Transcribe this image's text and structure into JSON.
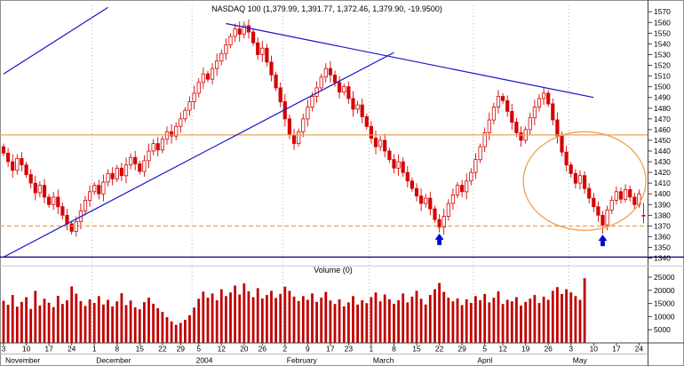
{
  "title": "NASDAQ 100 (1,379.99, 1,391.77, 1,372.46, 1,379.90, -19.9500)",
  "volume_pane": {
    "title": "Volume (0)"
  },
  "colors": {
    "candle": "#d40404",
    "candle_up_fill": "#ffffff",
    "volume": "#c00000",
    "trendline": "#1515c8",
    "orange": "#efa050",
    "navy": "#000080",
    "grid": "#9a9a9a",
    "arrow": "#0008d0",
    "axis": "#404040"
  },
  "chart_data": {
    "type": "candlestick",
    "title": "NASDAQ 100",
    "last_quote": {
      "open": 1379.99,
      "high": 1391.77,
      "low": 1372.46,
      "close": 1379.9,
      "change": -19.95
    },
    "ylim": [
      1338,
      1576
    ],
    "volume_ylim": [
      0,
      27000
    ],
    "y_ticks": [
      1570,
      1560,
      1550,
      1540,
      1530,
      1520,
      1510,
      1500,
      1490,
      1480,
      1470,
      1460,
      1450,
      1440,
      1430,
      1420,
      1410,
      1400,
      1390,
      1380,
      1370,
      1360,
      1350,
      1340
    ],
    "volume_ticks": [
      25000,
      20000,
      15000,
      10000,
      5000
    ],
    "day_ticks": [
      {
        "index": 0,
        "label": "3"
      },
      {
        "index": 5,
        "label": "10"
      },
      {
        "index": 10,
        "label": "17"
      },
      {
        "index": 15,
        "label": "24"
      },
      {
        "index": 20,
        "label": "1"
      },
      {
        "index": 25,
        "label": "8"
      },
      {
        "index": 30,
        "label": "15"
      },
      {
        "index": 35,
        "label": "22"
      },
      {
        "index": 39,
        "label": "29"
      },
      {
        "index": 43,
        "label": "5"
      },
      {
        "index": 48,
        "label": "12"
      },
      {
        "index": 53,
        "label": "20"
      },
      {
        "index": 57,
        "label": "26"
      },
      {
        "index": 62,
        "label": "2"
      },
      {
        "index": 67,
        "label": "9"
      },
      {
        "index": 72,
        "label": "17"
      },
      {
        "index": 76,
        "label": "23"
      },
      {
        "index": 81,
        "label": "1"
      },
      {
        "index": 86,
        "label": "8"
      },
      {
        "index": 91,
        "label": "15"
      },
      {
        "index": 96,
        "label": "22"
      },
      {
        "index": 101,
        "label": "29"
      },
      {
        "index": 106,
        "label": "5"
      },
      {
        "index": 110,
        "label": "12"
      },
      {
        "index": 115,
        "label": "19"
      },
      {
        "index": 120,
        "label": "26"
      },
      {
        "index": 125,
        "label": "3"
      },
      {
        "index": 130,
        "label": "10"
      },
      {
        "index": 135,
        "label": "17"
      },
      {
        "index": 140,
        "label": "24"
      }
    ],
    "months": [
      {
        "index": 0,
        "label": "November"
      },
      {
        "index": 20,
        "label": "December"
      },
      {
        "index": 42,
        "label": "2004"
      },
      {
        "index": 62,
        "label": "February"
      },
      {
        "index": 81,
        "label": "March"
      },
      {
        "index": 104,
        "label": "April"
      },
      {
        "index": 125,
        "label": "May"
      }
    ],
    "ohlc": [
      [
        1444,
        1447,
        1435,
        1438
      ],
      [
        1438,
        1443,
        1425,
        1430
      ],
      [
        1430,
        1437,
        1415,
        1422
      ],
      [
        1422,
        1437,
        1418,
        1433
      ],
      [
        1433,
        1439,
        1421,
        1427
      ],
      [
        1427,
        1430,
        1415,
        1418
      ],
      [
        1418,
        1423,
        1405,
        1410
      ],
      [
        1410,
        1417,
        1394,
        1401
      ],
      [
        1401,
        1412,
        1397,
        1408
      ],
      [
        1408,
        1414,
        1391,
        1397
      ],
      [
        1397,
        1400,
        1387,
        1390
      ],
      [
        1390,
        1402,
        1385,
        1397
      ],
      [
        1397,
        1404,
        1381,
        1388
      ],
      [
        1388,
        1392,
        1376,
        1380
      ],
      [
        1380,
        1386,
        1366,
        1372
      ],
      [
        1372,
        1375,
        1362,
        1365
      ],
      [
        1365,
        1379,
        1360,
        1374
      ],
      [
        1374,
        1391,
        1367,
        1384
      ],
      [
        1384,
        1398,
        1380,
        1394
      ],
      [
        1394,
        1408,
        1388,
        1402
      ],
      [
        1402,
        1411,
        1399,
        1408
      ],
      [
        1408,
        1413,
        1395,
        1400
      ],
      [
        1400,
        1418,
        1393,
        1411
      ],
      [
        1411,
        1423,
        1407,
        1419
      ],
      [
        1419,
        1425,
        1408,
        1414
      ],
      [
        1414,
        1427,
        1411,
        1424
      ],
      [
        1424,
        1429,
        1412,
        1417
      ],
      [
        1417,
        1434,
        1410,
        1427
      ],
      [
        1427,
        1438,
        1423,
        1434
      ],
      [
        1434,
        1440,
        1422,
        1428
      ],
      [
        1428,
        1431,
        1418,
        1421
      ],
      [
        1421,
        1436,
        1416,
        1431
      ],
      [
        1431,
        1447,
        1424,
        1440
      ],
      [
        1440,
        1451,
        1436,
        1447
      ],
      [
        1447,
        1453,
        1435,
        1441
      ],
      [
        1441,
        1454,
        1438,
        1451
      ],
      [
        1451,
        1463,
        1446,
        1458
      ],
      [
        1458,
        1465,
        1447,
        1454
      ],
      [
        1454,
        1467,
        1450,
        1463
      ],
      [
        1463,
        1476,
        1457,
        1470
      ],
      [
        1470,
        1481,
        1467,
        1478
      ],
      [
        1478,
        1491,
        1473,
        1486
      ],
      [
        1486,
        1501,
        1479,
        1494
      ],
      [
        1494,
        1508,
        1490,
        1504
      ],
      [
        1504,
        1518,
        1498,
        1512
      ],
      [
        1512,
        1515,
        1504,
        1507
      ],
      [
        1507,
        1522,
        1502,
        1517
      ],
      [
        1517,
        1531,
        1510,
        1524
      ],
      [
        1524,
        1535,
        1520,
        1531
      ],
      [
        1531,
        1545,
        1525,
        1539
      ],
      [
        1539,
        1550,
        1536,
        1547
      ],
      [
        1547,
        1559,
        1542,
        1554
      ],
      [
        1554,
        1561,
        1542,
        1549
      ],
      [
        1549,
        1561,
        1545,
        1557
      ],
      [
        1557,
        1563,
        1545,
        1551
      ],
      [
        1551,
        1554,
        1538,
        1541
      ],
      [
        1541,
        1546,
        1525,
        1530
      ],
      [
        1530,
        1543,
        1523,
        1536
      ],
      [
        1536,
        1540,
        1519,
        1523
      ],
      [
        1523,
        1529,
        1505,
        1511
      ],
      [
        1511,
        1514,
        1496,
        1499
      ],
      [
        1499,
        1504,
        1481,
        1486
      ],
      [
        1486,
        1493,
        1463,
        1470
      ],
      [
        1470,
        1474,
        1451,
        1455
      ],
      [
        1455,
        1461,
        1441,
        1447
      ],
      [
        1447,
        1461,
        1444,
        1458
      ],
      [
        1458,
        1475,
        1453,
        1470
      ],
      [
        1470,
        1488,
        1463,
        1481
      ],
      [
        1481,
        1495,
        1477,
        1491
      ],
      [
        1491,
        1505,
        1485,
        1499
      ],
      [
        1499,
        1512,
        1496,
        1509
      ],
      [
        1509,
        1522,
        1504,
        1517
      ],
      [
        1517,
        1524,
        1504,
        1511
      ],
      [
        1511,
        1515,
        1500,
        1504
      ],
      [
        1504,
        1510,
        1489,
        1495
      ],
      [
        1495,
        1503,
        1492,
        1500
      ],
      [
        1500,
        1505,
        1484,
        1489
      ],
      [
        1489,
        1496,
        1472,
        1479
      ],
      [
        1479,
        1487,
        1475,
        1483
      ],
      [
        1483,
        1489,
        1466,
        1472
      ],
      [
        1472,
        1475,
        1460,
        1463
      ],
      [
        1463,
        1468,
        1447,
        1452
      ],
      [
        1452,
        1459,
        1437,
        1444
      ],
      [
        1444,
        1454,
        1440,
        1450
      ],
      [
        1450,
        1456,
        1434,
        1440
      ],
      [
        1440,
        1443,
        1429,
        1432
      ],
      [
        1432,
        1437,
        1419,
        1424
      ],
      [
        1424,
        1437,
        1417,
        1430
      ],
      [
        1430,
        1434,
        1416,
        1420
      ],
      [
        1420,
        1426,
        1406,
        1412
      ],
      [
        1412,
        1415,
        1402,
        1405
      ],
      [
        1405,
        1410,
        1393,
        1398
      ],
      [
        1398,
        1405,
        1384,
        1391
      ],
      [
        1391,
        1400,
        1387,
        1396
      ],
      [
        1396,
        1402,
        1380,
        1386
      ],
      [
        1386,
        1389,
        1373,
        1376
      ],
      [
        1376,
        1381,
        1364,
        1369
      ],
      [
        1369,
        1386,
        1362,
        1379
      ],
      [
        1379,
        1395,
        1375,
        1391
      ],
      [
        1391,
        1405,
        1385,
        1399
      ],
      [
        1399,
        1411,
        1396,
        1408
      ],
      [
        1408,
        1413,
        1397,
        1402
      ],
      [
        1402,
        1419,
        1395,
        1412
      ],
      [
        1412,
        1424,
        1408,
        1420
      ],
      [
        1420,
        1438,
        1414,
        1432
      ],
      [
        1432,
        1447,
        1429,
        1444
      ],
      [
        1444,
        1462,
        1439,
        1457
      ],
      [
        1457,
        1476,
        1450,
        1469
      ],
      [
        1469,
        1485,
        1465,
        1481
      ],
      [
        1481,
        1497,
        1475,
        1491
      ],
      [
        1491,
        1494,
        1484,
        1487
      ],
      [
        1487,
        1492,
        1472,
        1477
      ],
      [
        1477,
        1484,
        1460,
        1467
      ],
      [
        1467,
        1471,
        1453,
        1457
      ],
      [
        1457,
        1463,
        1444,
        1450
      ],
      [
        1450,
        1463,
        1447,
        1460
      ],
      [
        1460,
        1476,
        1455,
        1471
      ],
      [
        1471,
        1488,
        1464,
        1481
      ],
      [
        1481,
        1493,
        1477,
        1489
      ],
      [
        1489,
        1500,
        1483,
        1494
      ],
      [
        1494,
        1497,
        1481,
        1484
      ],
      [
        1484,
        1489,
        1464,
        1469
      ],
      [
        1469,
        1476,
        1447,
        1454
      ],
      [
        1454,
        1458,
        1435,
        1439
      ],
      [
        1439,
        1445,
        1421,
        1427
      ],
      [
        1427,
        1430,
        1415,
        1419
      ],
      [
        1419,
        1423,
        1405,
        1410
      ],
      [
        1410,
        1422,
        1404,
        1417
      ],
      [
        1417,
        1421,
        1400,
        1405
      ],
      [
        1405,
        1410,
        1391,
        1396
      ],
      [
        1396,
        1401,
        1383,
        1388
      ],
      [
        1388,
        1393,
        1374,
        1380
      ],
      [
        1380,
        1384,
        1363,
        1371
      ],
      [
        1371,
        1389,
        1366,
        1385
      ],
      [
        1385,
        1398,
        1381,
        1394
      ],
      [
        1394,
        1407,
        1390,
        1402
      ],
      [
        1402,
        1406,
        1391,
        1395
      ],
      [
        1395,
        1409,
        1392,
        1404
      ],
      [
        1404,
        1408,
        1393,
        1397
      ],
      [
        1397,
        1401,
        1386,
        1390
      ],
      [
        1390,
        1404,
        1387,
        1400
      ],
      [
        1379.99,
        1391.77,
        1372.46,
        1379.9
      ]
    ],
    "volume": [
      16000,
      14500,
      18200,
      13800,
      15600,
      17400,
      12900,
      19800,
      14200,
      16800,
      15300,
      13600,
      17900,
      14800,
      16200,
      21500,
      18700,
      15900,
      14100,
      16600,
      15200,
      17800,
      14600,
      16400,
      13900,
      15800,
      18900,
      14400,
      16100,
      13500,
      12800,
      15500,
      17200,
      14900,
      13200,
      11800,
      9800,
      8200,
      6900,
      7600,
      8800,
      10500,
      13400,
      16800,
      19500,
      17200,
      18800,
      16200,
      20400,
      17800,
      19200,
      21800,
      18400,
      22600,
      19600,
      17400,
      20800,
      16900,
      18200,
      19800,
      17100,
      18600,
      21400,
      19800,
      17600,
      15900,
      17800,
      16400,
      18800,
      15600,
      17200,
      19400,
      16100,
      14800,
      16600,
      13900,
      15400,
      17800,
      14600,
      16200,
      15100,
      17400,
      19200,
      15800,
      18400,
      16600,
      14900,
      16200,
      18800,
      15400,
      17600,
      19800,
      16800,
      14600,
      18200,
      20400,
      22800,
      19400,
      17200,
      15800,
      16900,
      14400,
      16600,
      15200,
      17800,
      16200,
      18600,
      15400,
      17200,
      19600,
      14800,
      16400,
      15800,
      17400,
      14200,
      15600,
      16800,
      18200,
      15200,
      17600,
      16400,
      19800,
      21200,
      18600,
      20400,
      19200,
      17800,
      16400,
      24600,
      0,
      0,
      0,
      0,
      0,
      0,
      0,
      0,
      0,
      0,
      0,
      0,
      0
    ],
    "annotations": {
      "hlines": [
        {
          "price": 1455,
          "style": "solid",
          "color": "#efa050",
          "full_width": false,
          "name": "resistance-line-1455"
        },
        {
          "price": 1370,
          "style": "dashed",
          "color": "#efa050",
          "full_width": false,
          "name": "support-dashed-line-1370"
        },
        {
          "price": 1341,
          "style": "solid",
          "color": "#000080",
          "full_width": true,
          "name": "lower-navy-line"
        }
      ],
      "trendlines": [
        {
          "from": [
            0,
            1341
          ],
          "to": [
            86,
            1532
          ],
          "color": "#1515c8",
          "name": "ascending-trendline"
        },
        {
          "from": [
            0,
            1512
          ],
          "to": [
            23,
            1574
          ],
          "color": "#1515c8",
          "name": "upper-channel-line"
        },
        {
          "from": [
            49,
            1559
          ],
          "to": [
            130,
            1490
          ],
          "color": "#1515c8",
          "name": "descending-trendline"
        }
      ],
      "ellipse": {
        "center_day": 128,
        "center_price": 1412,
        "rx_days": 13.5,
        "ry_points": 46,
        "color": "#efa050"
      },
      "arrows": [
        {
          "day": 96,
          "price": 1363,
          "direction": "up",
          "color": "#0008d0"
        },
        {
          "day": 132,
          "price": 1362,
          "direction": "up",
          "color": "#0008d0"
        }
      ]
    }
  }
}
